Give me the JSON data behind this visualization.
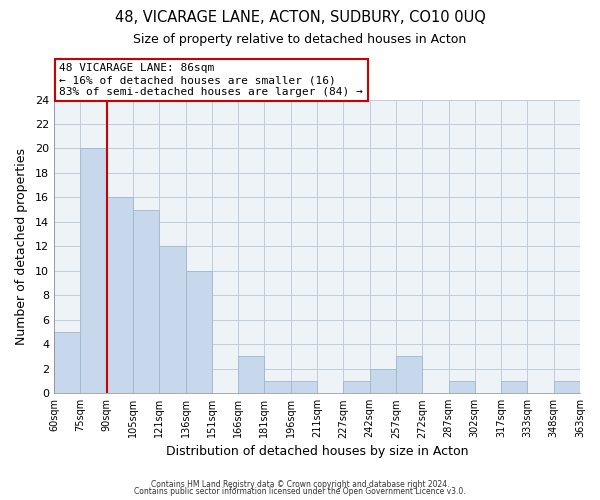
{
  "title1": "48, VICARAGE LANE, ACTON, SUDBURY, CO10 0UQ",
  "title2": "Size of property relative to detached houses in Acton",
  "xlabel": "Distribution of detached houses by size in Acton",
  "ylabel": "Number of detached properties",
  "bar_color": "#c8d8ec",
  "bar_edge_color": "#a0b8cc",
  "bin_labels": [
    "60sqm",
    "75sqm",
    "90sqm",
    "105sqm",
    "121sqm",
    "136sqm",
    "151sqm",
    "166sqm",
    "181sqm",
    "196sqm",
    "211sqm",
    "227sqm",
    "242sqm",
    "257sqm",
    "272sqm",
    "287sqm",
    "302sqm",
    "317sqm",
    "333sqm",
    "348sqm",
    "363sqm"
  ],
  "bar_heights": [
    5,
    20,
    16,
    15,
    12,
    10,
    0,
    3,
    1,
    1,
    0,
    1,
    2,
    3,
    0,
    1,
    0,
    1,
    0,
    1
  ],
  "vline_x": 2,
  "vline_color": "#cc0000",
  "ylim": [
    0,
    24
  ],
  "yticks": [
    0,
    2,
    4,
    6,
    8,
    10,
    12,
    14,
    16,
    18,
    20,
    22,
    24
  ],
  "annotation_title": "48 VICARAGE LANE: 86sqm",
  "annotation_line1": "← 16% of detached houses are smaller (16)",
  "annotation_line2": "83% of semi-detached houses are larger (84) →",
  "footnote1": "Contains HM Land Registry data © Crown copyright and database right 2024.",
  "footnote2": "Contains public sector information licensed under the Open Government Licence v3.0.",
  "background_color": "#ffffff",
  "plot_bg_color": "#eef3f8",
  "grid_color": "#c0ccd8"
}
